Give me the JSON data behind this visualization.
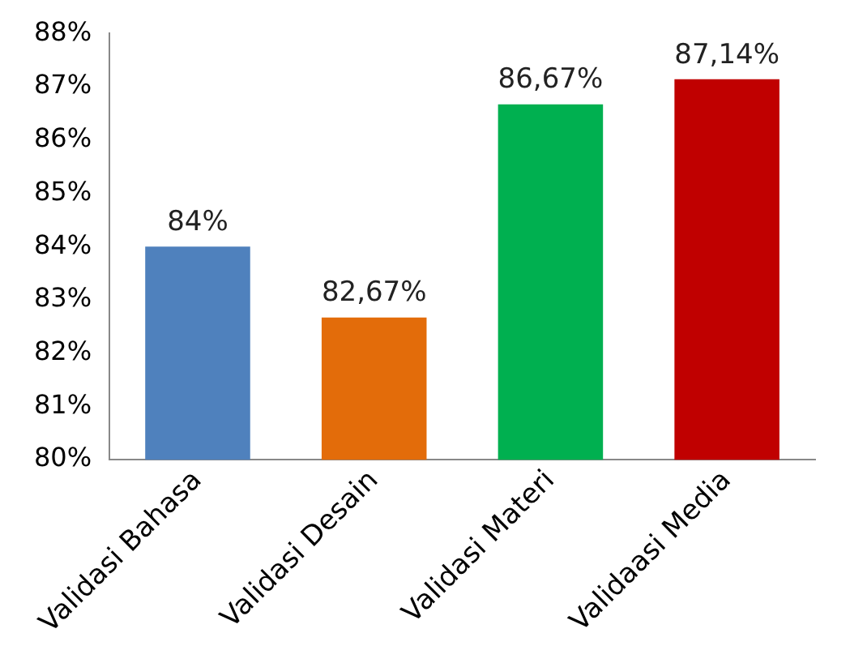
{
  "chart_data": {
    "type": "bar",
    "categories": [
      "Validasi Bahasa",
      "Validasi Desain",
      "Validasi Materi",
      "Validaasi Media"
    ],
    "values": [
      84,
      82.67,
      86.67,
      87.14
    ],
    "colors": [
      "#4f81bd",
      "#e36c0a",
      "#00b050",
      "#c00000"
    ],
    "value_labels": [
      "84%",
      "82,67%",
      "86,67%",
      "87,14%"
    ],
    "ylim": [
      80,
      88
    ],
    "yticks": [
      {
        "value": 80,
        "label": "80%"
      },
      {
        "value": 81,
        "label": "81%"
      },
      {
        "value": 82,
        "label": "82%"
      },
      {
        "value": 83,
        "label": "83%"
      },
      {
        "value": 84,
        "label": "84%"
      },
      {
        "value": 85,
        "label": "85%"
      },
      {
        "value": 86,
        "label": "86%"
      },
      {
        "value": 87,
        "label": "87%"
      },
      {
        "value": 88,
        "label": "88%"
      }
    ],
    "grid": false,
    "legend": false
  }
}
